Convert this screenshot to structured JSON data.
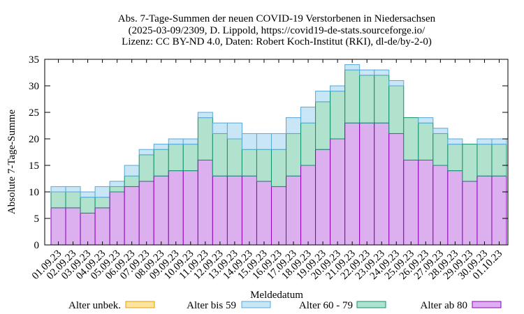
{
  "chart_data": {
    "type": "bar",
    "stacked": true,
    "title": [
      "Abs. 7-Tage-Summen der neuen COVID-19 Verstorbenen in Niedersachsen",
      "(2025-03-09/2309, D. Lippold, https://covid19-de-stats.sourceforge.io/",
      "Lizenz: CC BY-ND 4.0, Daten: Robert Koch-Institut (RKI), dl-de/by-2-0)"
    ],
    "xlabel": "Meldedatum",
    "ylabel": "Absolute 7-Tage-Summe",
    "ylim": [
      0,
      35
    ],
    "yticks": [
      0,
      5,
      10,
      15,
      20,
      25,
      30,
      35
    ],
    "grid": false,
    "legend_position": "bottom",
    "categories": [
      "01.09.23",
      "02.09.23",
      "03.09.23",
      "04.09.23",
      "05.09.23",
      "06.09.23",
      "07.09.23",
      "08.09.23",
      "09.09.23",
      "10.09.23",
      "11.09.23",
      "12.09.23",
      "13.09.23",
      "14.09.23",
      "15.09.23",
      "16.09.23",
      "17.09.23",
      "18.09.23",
      "19.09.23",
      "20.09.23",
      "21.09.23",
      "22.09.23",
      "23.09.23",
      "24.09.23",
      "25.09.23",
      "26.09.23",
      "27.09.23",
      "28.09.23",
      "29.09.23",
      "30.09.23",
      "01.10.23"
    ],
    "series": [
      {
        "name": "Alter ab 80",
        "color": "#dcb0ee",
        "edge": "#8b00b8",
        "values": [
          7,
          7,
          6,
          7,
          10,
          11,
          12,
          13,
          14,
          14,
          16,
          13,
          13,
          13,
          12,
          11,
          13,
          15,
          18,
          20,
          23,
          23,
          23,
          21,
          16,
          16,
          15,
          14,
          12,
          13,
          13
        ]
      },
      {
        "name": "Alter 60 - 79",
        "color": "#b0e2cd",
        "edge": "#11906a",
        "values": [
          3,
          3,
          3,
          2,
          1,
          2,
          5,
          5,
          5,
          5,
          8,
          8,
          7,
          5,
          6,
          7,
          8,
          8,
          9,
          9,
          10,
          9,
          9,
          9,
          8,
          7,
          6,
          5,
          7,
          6,
          6
        ]
      },
      {
        "name": "Alter bis 59",
        "color": "#c8e6f6",
        "edge": "#58a8d8",
        "values": [
          1,
          1,
          1,
          2,
          1,
          2,
          1,
          1,
          1,
          1,
          1,
          2,
          3,
          3,
          3,
          3,
          3,
          3,
          2,
          1,
          1,
          1,
          1,
          1,
          0,
          1,
          1,
          1,
          0,
          1,
          1
        ]
      },
      {
        "name": "Alter unbek.",
        "color": "#fbe3a2",
        "edge": "#e0a000",
        "values": [
          0,
          0,
          0,
          0,
          0,
          0,
          0,
          0,
          0,
          0,
          0,
          0,
          0,
          0,
          0,
          0,
          0,
          0,
          0,
          0,
          0,
          0,
          0,
          0,
          0,
          0,
          0,
          0,
          0,
          0,
          0
        ]
      }
    ],
    "legend_order": [
      "Alter unbek.",
      "Alter bis 59",
      "Alter 60 - 79",
      "Alter ab 80"
    ]
  }
}
